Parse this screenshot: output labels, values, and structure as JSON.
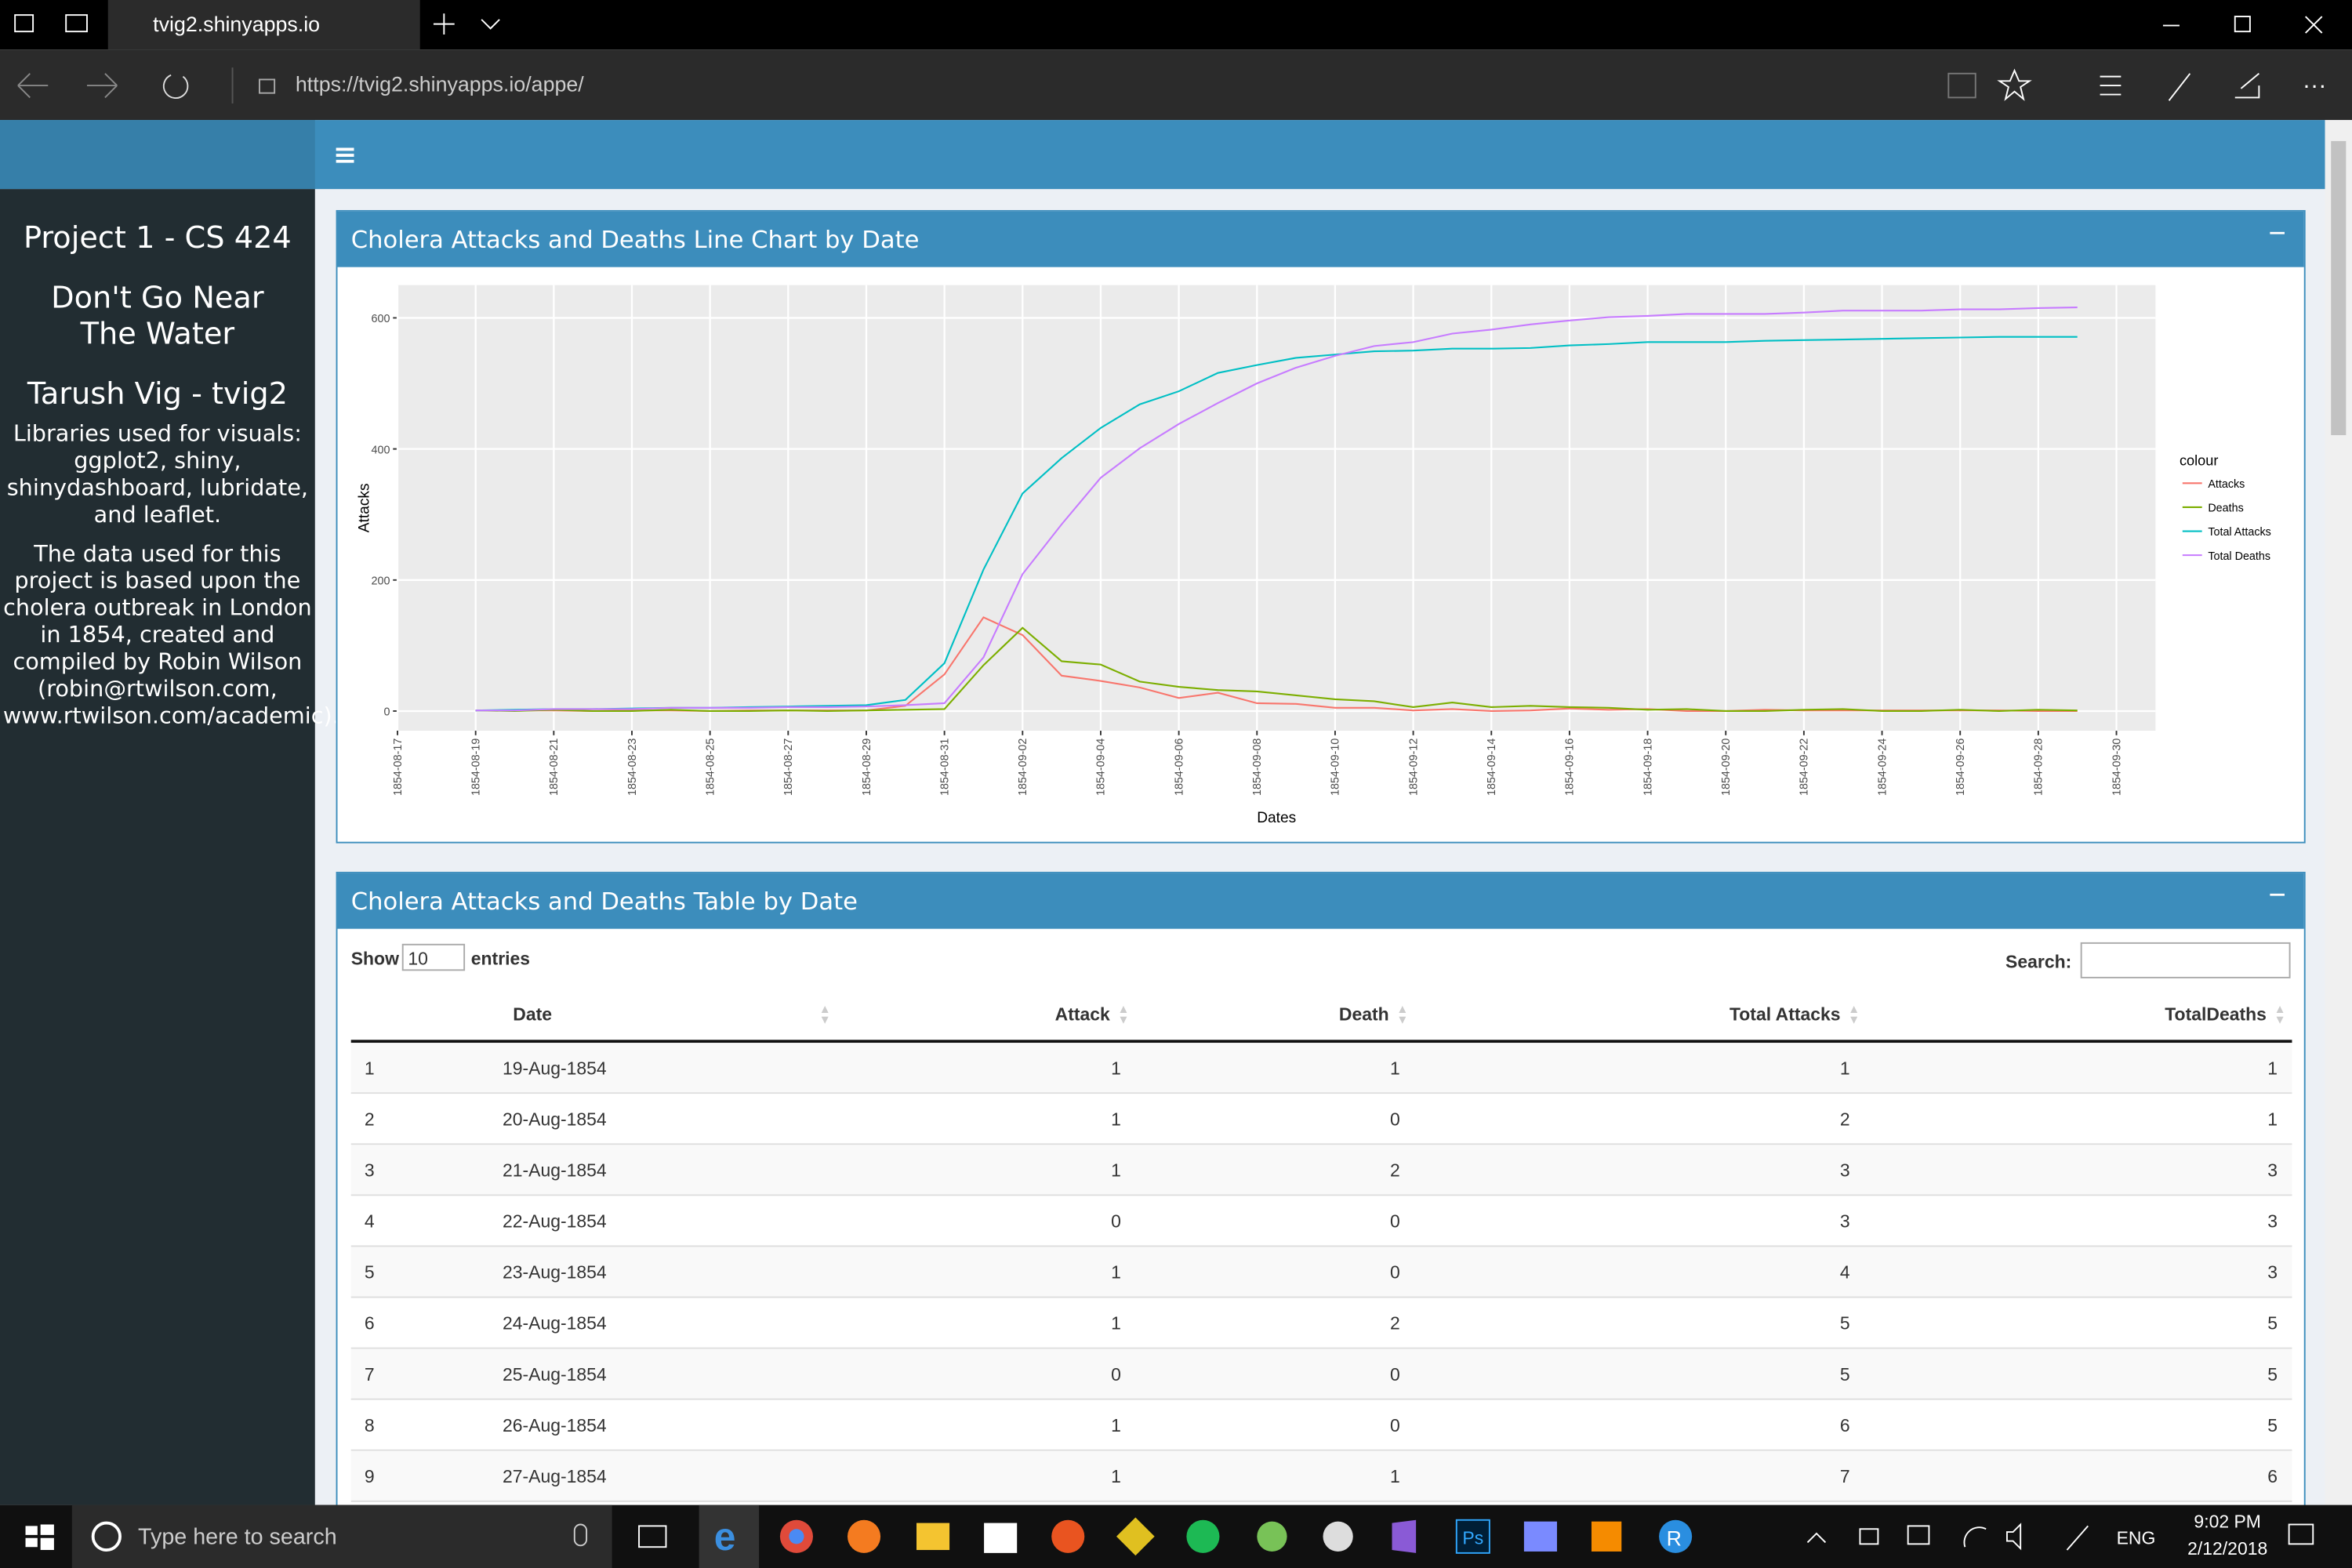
{
  "browser": {
    "tab_title": "tvig2.shinyapps.io",
    "url": "https://tvig2.shinyapps.io/appe/"
  },
  "sidebar": {
    "title": "Project 1 - CS 424",
    "subtitle": "Don't Go Near The Water",
    "author": "Tarush Vig - tvig2",
    "libraries": "Libraries used for visuals: ggplot2, shiny, shinydashboard, lubridate, and leaflet.",
    "data_note": "The data used for this project is based upon the cholera outbreak in London in 1854, created and compiled by Robin Wilson (robin@rtwilson.com, www.rtwilson.com/academic)."
  },
  "chart_box": {
    "title": "Cholera Attacks and Deaths Line Chart by Date"
  },
  "chart_data": {
    "type": "line",
    "x_label": "Dates",
    "y_label": "Attacks",
    "legend_title": "colour",
    "grid": true,
    "x": [
      "1854-08-19",
      "1854-08-20",
      "1854-08-21",
      "1854-08-22",
      "1854-08-23",
      "1854-08-24",
      "1854-08-25",
      "1854-08-26",
      "1854-08-27",
      "1854-08-28",
      "1854-08-29",
      "1854-08-30",
      "1854-08-31",
      "1854-09-01",
      "1854-09-02",
      "1854-09-03",
      "1854-09-04",
      "1854-09-05",
      "1854-09-06",
      "1854-09-07",
      "1854-09-08",
      "1854-09-09",
      "1854-09-10",
      "1854-09-11",
      "1854-09-12",
      "1854-09-13",
      "1854-09-14",
      "1854-09-15",
      "1854-09-16",
      "1854-09-17",
      "1854-09-18",
      "1854-09-19",
      "1854-09-20",
      "1854-09-21",
      "1854-09-22",
      "1854-09-23",
      "1854-09-24",
      "1854-09-25",
      "1854-09-26",
      "1854-09-27",
      "1854-09-28",
      "1854-09-29"
    ],
    "series": [
      {
        "name": "Attacks",
        "color": "#F8766D",
        "values": [
          1,
          1,
          1,
          0,
          1,
          1,
          0,
          1,
          1,
          1,
          1,
          8,
          56,
          143,
          116,
          54,
          46,
          36,
          20,
          28,
          12,
          11,
          5,
          5,
          1,
          3,
          0,
          1,
          4,
          2,
          3,
          0,
          0,
          2,
          1,
          1,
          1,
          1,
          1,
          1,
          0,
          0
        ]
      },
      {
        "name": "Deaths",
        "color": "#7CAE00",
        "values": [
          1,
          0,
          2,
          0,
          0,
          2,
          0,
          0,
          1,
          0,
          1,
          2,
          3,
          70,
          127,
          76,
          71,
          45,
          37,
          32,
          30,
          24,
          18,
          15,
          6,
          13,
          6,
          8,
          6,
          5,
          2,
          3,
          0,
          0,
          2,
          3,
          0,
          0,
          2,
          0,
          2,
          1
        ]
      },
      {
        "name": "Total Attacks",
        "color": "#00BFC4",
        "values": [
          1,
          2,
          3,
          3,
          4,
          5,
          5,
          6,
          7,
          8,
          9,
          17,
          73,
          216,
          332,
          386,
          432,
          468,
          488,
          516,
          528,
          539,
          544,
          549,
          550,
          553,
          553,
          554,
          558,
          560,
          563,
          563,
          563,
          565,
          566,
          567,
          568,
          569,
          570,
          571,
          571,
          571
        ]
      },
      {
        "name": "Total Deaths",
        "color": "#C77CFF",
        "values": [
          1,
          1,
          3,
          3,
          3,
          5,
          5,
          5,
          6,
          6,
          7,
          9,
          12,
          82,
          209,
          285,
          356,
          401,
          438,
          470,
          500,
          524,
          542,
          557,
          563,
          576,
          582,
          590,
          596,
          601,
          603,
          606,
          606,
          606,
          608,
          611,
          611,
          611,
          613,
          613,
          615,
          616
        ]
      }
    ],
    "xlim": [
      "1854-08-17",
      "1854-10-01"
    ],
    "xticks": [
      "1854-08-17",
      "1854-08-19",
      "1854-08-21",
      "1854-08-23",
      "1854-08-25",
      "1854-08-27",
      "1854-08-29",
      "1854-08-31",
      "1854-09-02",
      "1854-09-04",
      "1854-09-06",
      "1854-09-08",
      "1854-09-10",
      "1854-09-12",
      "1854-09-14",
      "1854-09-16",
      "1854-09-18",
      "1854-09-20",
      "1854-09-22",
      "1854-09-24",
      "1854-09-26",
      "1854-09-28",
      "1854-09-30"
    ],
    "ylim": [
      -30,
      650
    ],
    "yticks": [
      0,
      200,
      400,
      600
    ]
  },
  "table_box": {
    "title": "Cholera Attacks and Deaths Table by Date",
    "show_label": "Show",
    "length": "10",
    "entries_label": "entries",
    "search_label": "Search:"
  },
  "table": {
    "columns": [
      "Date",
      "Attack",
      "Death",
      "Total Attacks",
      "TotalDeaths"
    ],
    "rows": [
      [
        1,
        "19-Aug-1854",
        1,
        1,
        1,
        1
      ],
      [
        2,
        "20-Aug-1854",
        1,
        0,
        2,
        1
      ],
      [
        3,
        "21-Aug-1854",
        1,
        2,
        3,
        3
      ],
      [
        4,
        "22-Aug-1854",
        0,
        0,
        3,
        3
      ],
      [
        5,
        "23-Aug-1854",
        1,
        0,
        4,
        3
      ],
      [
        6,
        "24-Aug-1854",
        1,
        2,
        5,
        5
      ],
      [
        7,
        "25-Aug-1854",
        0,
        0,
        5,
        5
      ],
      [
        8,
        "26-Aug-1854",
        1,
        0,
        6,
        5
      ],
      [
        9,
        "27-Aug-1854",
        1,
        1,
        7,
        6
      ]
    ]
  },
  "taskbar": {
    "search_placeholder": "Type here to search",
    "language": "ENG",
    "time": "9:02 PM",
    "date": "2/12/2018"
  }
}
